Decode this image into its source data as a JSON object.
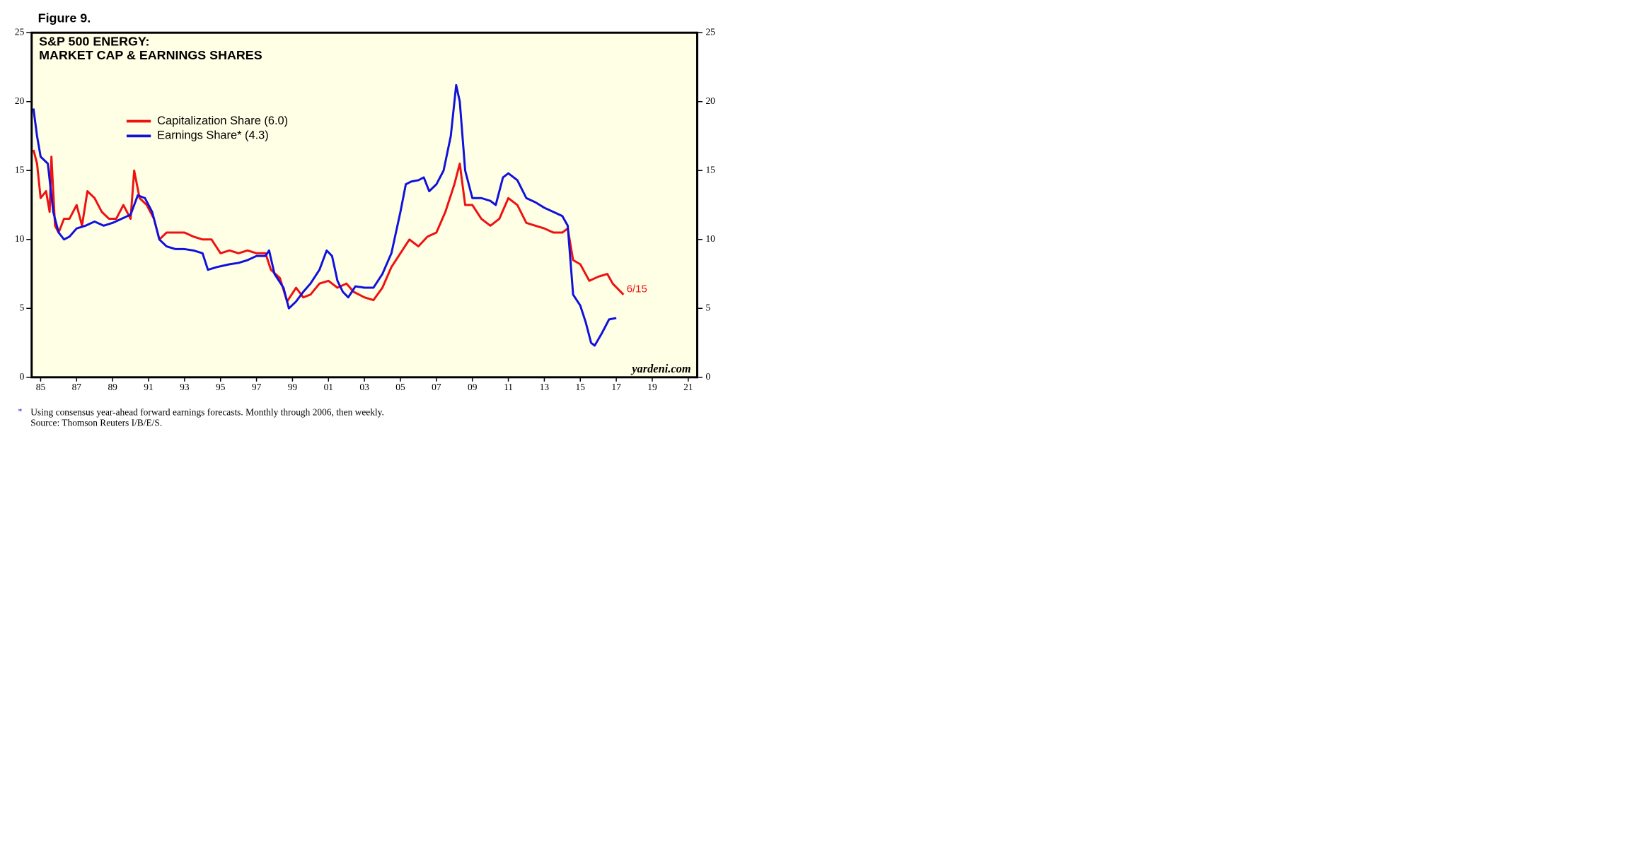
{
  "chart_data": {
    "type": "line",
    "figure_label": "Figure 9.",
    "title": "S&P 500 ENERGY:",
    "subtitle": "MARKET CAP & EARNINGS SHARES",
    "watermark": "yardeni.com",
    "annotation": "6/15",
    "footnote": "Using consensus year-ahead forward earnings forecasts. Monthly through 2006, then weekly.",
    "footnote_marker": "*",
    "source": "Source: Thomson Reuters I/B/E/S.",
    "background": "#ffffe6",
    "xlim": [
      1984.5,
      2021.5
    ],
    "ylim": [
      0,
      25
    ],
    "yticks": [
      0,
      5,
      10,
      15,
      20,
      25
    ],
    "xticks": [
      {
        "value": 1985,
        "label": "85"
      },
      {
        "value": 1987,
        "label": "87"
      },
      {
        "value": 1989,
        "label": "89"
      },
      {
        "value": 1991,
        "label": "91"
      },
      {
        "value": 1993,
        "label": "93"
      },
      {
        "value": 1995,
        "label": "95"
      },
      {
        "value": 1997,
        "label": "97"
      },
      {
        "value": 1999,
        "label": "99"
      },
      {
        "value": 2001,
        "label": "01"
      },
      {
        "value": 2003,
        "label": "03"
      },
      {
        "value": 2005,
        "label": "05"
      },
      {
        "value": 2007,
        "label": "07"
      },
      {
        "value": 2009,
        "label": "09"
      },
      {
        "value": 2011,
        "label": "11"
      },
      {
        "value": 2013,
        "label": "13"
      },
      {
        "value": 2015,
        "label": "15"
      },
      {
        "value": 2017,
        "label": "17"
      },
      {
        "value": 2019,
        "label": "19"
      },
      {
        "value": 2021,
        "label": "21"
      }
    ],
    "series": [
      {
        "name": "Capitalization Share (6.0)",
        "color": "#ee1111",
        "x": [
          1984.6,
          1984.8,
          1985.0,
          1985.3,
          1985.5,
          1985.6,
          1985.8,
          1986.0,
          1986.3,
          1986.6,
          1987.0,
          1987.3,
          1987.6,
          1988.0,
          1988.4,
          1988.8,
          1989.2,
          1989.6,
          1990.0,
          1990.2,
          1990.5,
          1990.9,
          1991.3,
          1991.6,
          1992.0,
          1992.5,
          1993.0,
          1993.5,
          1994.0,
          1994.5,
          1995.0,
          1995.5,
          1996.0,
          1996.5,
          1997.0,
          1997.5,
          1997.8,
          1998.3,
          1998.7,
          1999.2,
          1999.6,
          2000.0,
          2000.5,
          2001.0,
          2001.5,
          2002.0,
          2002.4,
          2003.0,
          2003.5,
          2004.0,
          2004.5,
          2005.0,
          2005.5,
          2006.0,
          2006.5,
          2007.0,
          2007.5,
          2008.0,
          2008.3,
          2008.6,
          2009.0,
          2009.5,
          2010.0,
          2010.5,
          2011.0,
          2011.5,
          2012.0,
          2012.5,
          2013.0,
          2013.5,
          2014.0,
          2014.3,
          2014.6,
          2015.0,
          2015.5,
          2016.0,
          2016.5,
          2016.8,
          2017.4
        ],
        "values": [
          16.5,
          15.5,
          13,
          13.5,
          12,
          16,
          11,
          10.5,
          11.5,
          11.5,
          12.5,
          11,
          13.5,
          13,
          12,
          11.5,
          11.5,
          12.5,
          11.5,
          15,
          13,
          12.5,
          11.5,
          10,
          10.5,
          10.5,
          10.5,
          10.2,
          10,
          10,
          9,
          9.2,
          9,
          9.2,
          9,
          9,
          7.8,
          7.2,
          5.5,
          6.5,
          5.8,
          6,
          6.8,
          7,
          6.5,
          6.8,
          6.2,
          5.8,
          5.6,
          6.5,
          8,
          9,
          10,
          9.5,
          10.2,
          10.5,
          12,
          14,
          15.5,
          12.5,
          12.5,
          11.5,
          11,
          11.5,
          13,
          12.5,
          11.2,
          11,
          10.8,
          10.5,
          10.5,
          10.8,
          8.5,
          8.2,
          7,
          7.3,
          7.5,
          6.8,
          6.0
        ]
      },
      {
        "name": "Earnings Share* (4.3)",
        "color": "#1111dd",
        "x": [
          1984.6,
          1984.8,
          1985.0,
          1985.4,
          1985.7,
          1986.0,
          1986.3,
          1986.6,
          1987.0,
          1987.5,
          1988.0,
          1988.5,
          1989.0,
          1989.5,
          1990.0,
          1990.4,
          1990.8,
          1991.2,
          1991.6,
          1992.0,
          1992.5,
          1993.0,
          1993.5,
          1994.0,
          1994.3,
          1994.8,
          1995.5,
          1996.0,
          1996.5,
          1997.0,
          1997.5,
          1997.7,
          1998.0,
          1998.5,
          1998.8,
          1999.2,
          1999.6,
          2000.0,
          2000.5,
          2000.9,
          2001.2,
          2001.5,
          2001.8,
          2002.1,
          2002.5,
          2003.0,
          2003.5,
          2004.0,
          2004.5,
          2005.0,
          2005.3,
          2005.6,
          2006.0,
          2006.3,
          2006.6,
          2007.0,
          2007.4,
          2007.8,
          2008.1,
          2008.3,
          2008.6,
          2009.0,
          2009.5,
          2010.0,
          2010.3,
          2010.7,
          2011.0,
          2011.5,
          2012.0,
          2012.5,
          2013.0,
          2013.5,
          2014.0,
          2014.3,
          2014.6,
          2015.0,
          2015.3,
          2015.6,
          2015.8,
          2016.2,
          2016.6,
          2017.0
        ],
        "values": [
          19.5,
          17.5,
          16,
          15.5,
          12,
          10.5,
          10,
          10.2,
          10.8,
          11,
          11.3,
          11,
          11.2,
          11.5,
          11.8,
          13.2,
          13,
          12,
          10,
          9.5,
          9.3,
          9.3,
          9.2,
          9,
          7.8,
          8,
          8.2,
          8.3,
          8.5,
          8.8,
          8.8,
          9.2,
          7.5,
          6.5,
          5,
          5.5,
          6.2,
          6.8,
          7.8,
          9.2,
          8.8,
          7,
          6.2,
          5.8,
          6.6,
          6.5,
          6.5,
          7.5,
          9,
          12,
          14,
          14.2,
          14.3,
          14.5,
          13.5,
          14,
          15,
          17.5,
          21.2,
          20,
          15,
          13,
          13,
          12.8,
          12.5,
          14.5,
          14.8,
          14.3,
          13,
          12.7,
          12.3,
          12,
          11.7,
          11,
          6,
          5.2,
          4,
          2.5,
          2.3,
          3.2,
          4.2,
          4.3
        ]
      }
    ]
  }
}
